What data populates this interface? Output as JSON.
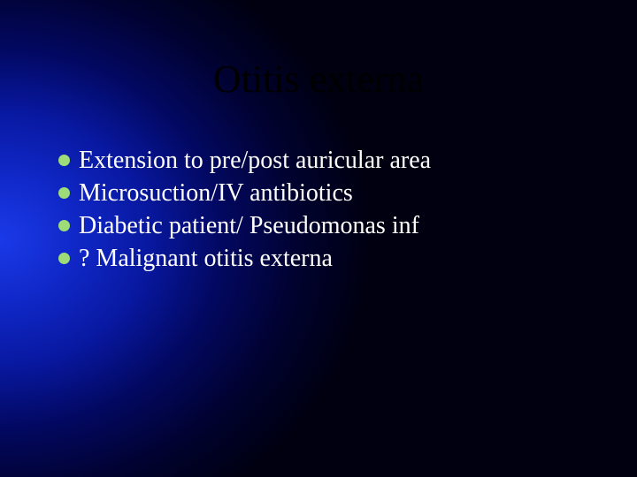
{
  "slide": {
    "title": "Otitis externa",
    "title_color": "#000000",
    "title_fontsize": 44,
    "bullets": [
      "Extension to pre/post auricular area",
      "Microsuction/IV antibiotics",
      "Diabetic patient/ Pseudomonas inf",
      "? Malignant otitis externa"
    ],
    "bullet_color": "#9edc78",
    "text_color": "#ffffff",
    "body_fontsize": 28,
    "background": {
      "type": "radial-gradient",
      "center": "left middle",
      "inner_color": "#1a3ae8",
      "outer_color": "#000010"
    }
  }
}
